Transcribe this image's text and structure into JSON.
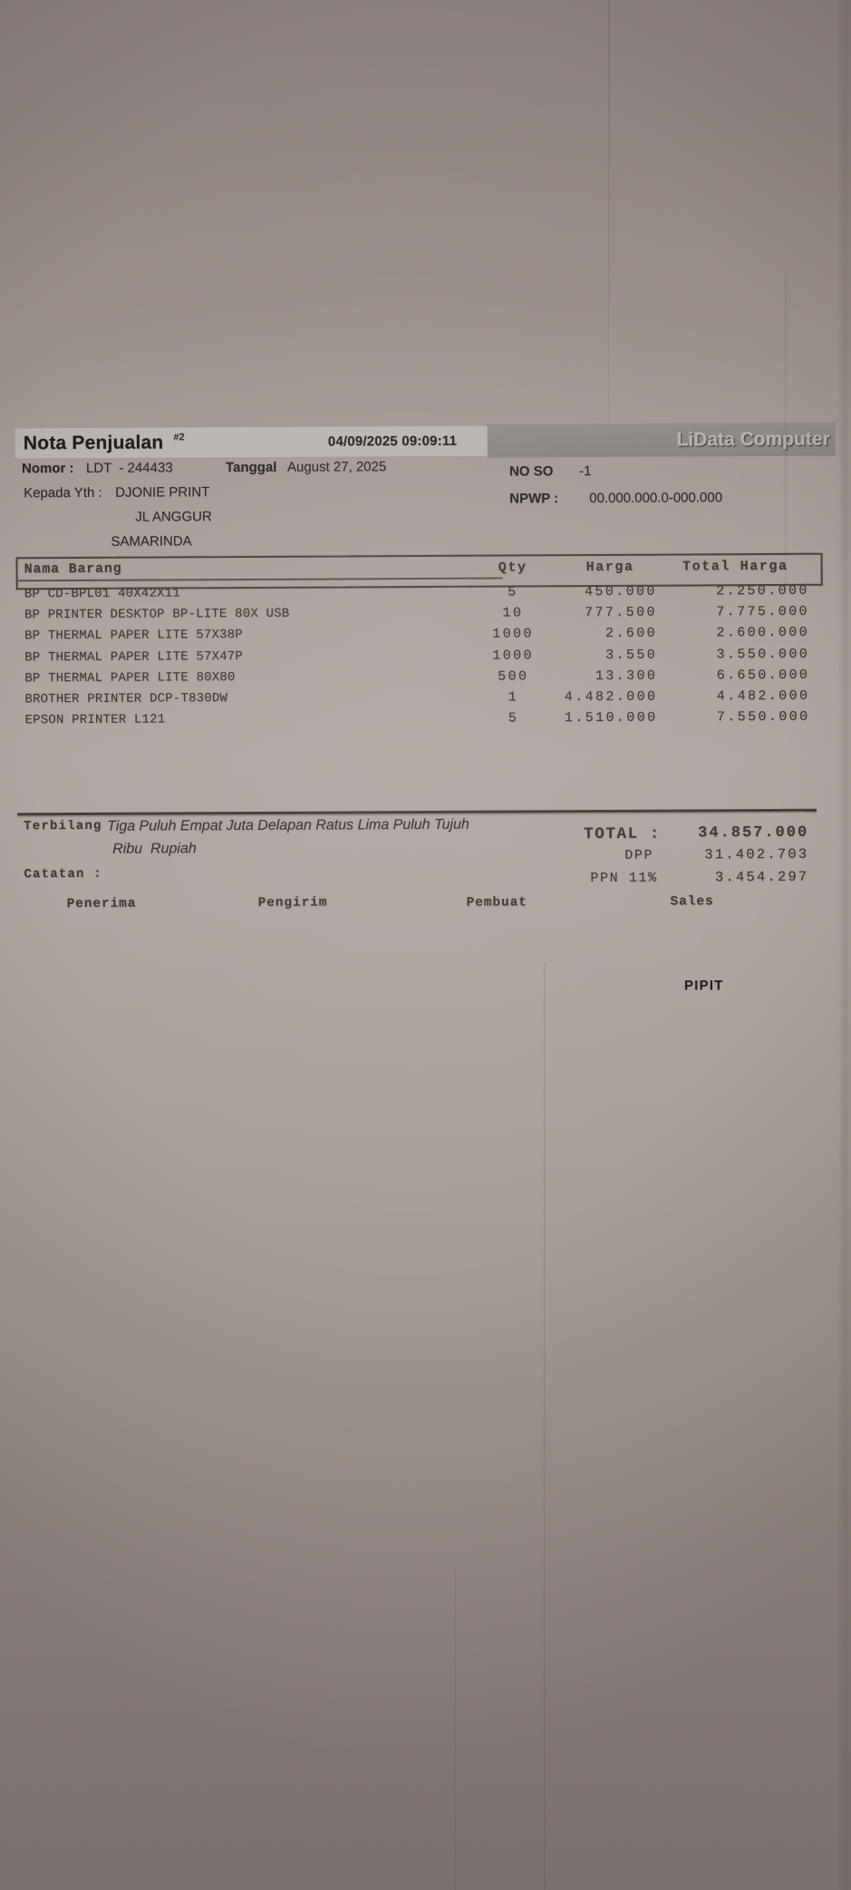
{
  "header": {
    "title": "Nota Penjualan",
    "title_sup": "#2",
    "timestamp": "04/09/2025 09:09:11",
    "brand": "LiData Computer"
  },
  "info": {
    "nomor_label": "Nomor :",
    "nomor_value": "LDT  - 244433",
    "tanggal_label": "Tanggal",
    "tanggal_value": "August 27, 2025",
    "noso_label": "NO SO",
    "noso_value": "-1",
    "kepada_label": "Kepada Yth :",
    "kepada_value": "DJONIE PRINT",
    "npwp_label": "NPWP :",
    "npwp_value": "00.000.000.0-000.000",
    "address_line2": "JL ANGGUR",
    "address_line3": "SAMARINDA"
  },
  "table": {
    "headers": {
      "name": "Nama Barang",
      "qty": "Qty",
      "price": "Harga",
      "total": "Total Harga"
    },
    "rows": [
      {
        "name": "BP CD-BPL01 40X42X11",
        "qty": "5",
        "price": "450.000",
        "total": "2.250.000"
      },
      {
        "name": "BP PRINTER DESKTOP BP-LITE 80X USB",
        "qty": "10",
        "price": "777.500",
        "total": "7.775.000"
      },
      {
        "name": "BP THERMAL PAPER LITE 57X38P",
        "qty": "1000",
        "price": "2.600",
        "total": "2.600.000"
      },
      {
        "name": "BP THERMAL PAPER LITE 57X47P",
        "qty": "1000",
        "price": "3.550",
        "total": "3.550.000"
      },
      {
        "name": "BP THERMAL PAPER LITE 80X80",
        "qty": "500",
        "price": "13.300",
        "total": "6.650.000"
      },
      {
        "name": "BROTHER PRINTER DCP-T830DW",
        "qty": "1",
        "price": "4.482.000",
        "total": "4.482.000"
      },
      {
        "name": "EPSON PRINTER L121",
        "qty": "5",
        "price": "1.510.000",
        "total": "7.550.000"
      }
    ]
  },
  "summary": {
    "terbilang_label": "Terbilang",
    "terbilang_line1": "Tiga Puluh Empat Juta Delapan Ratus Lima Puluh Tujuh",
    "terbilang_line2": "Ribu  Rupiah",
    "catatan_label": "Catatan :",
    "total_label": "TOTAL :",
    "total_value": "34.857.000",
    "dpp_label": "DPP",
    "dpp_value": "31.402.703",
    "ppn_label": "PPN 11%",
    "ppn_value": "3.454.297"
  },
  "signatures": {
    "penerima": "Penerima",
    "pengirim": "Pengirim",
    "pembuat": "Pembuat",
    "sales": "Sales",
    "sales_name": "PIPIT"
  },
  "colors": {
    "paper_mid": "#ada4a0",
    "paper_dark": "#8b817e",
    "ink": "#423a34",
    "ink_sans": "#2e2824",
    "bar_light": "#bab4b0",
    "bar_dark": "#8d8785",
    "logo_text": "#b6b1ae",
    "rule": "#453e38"
  }
}
